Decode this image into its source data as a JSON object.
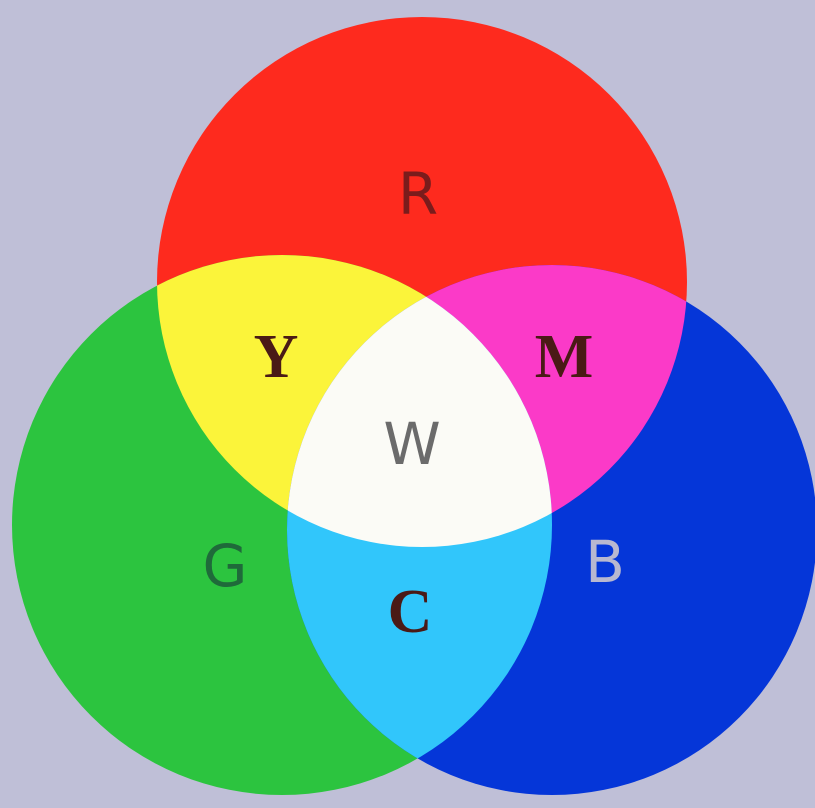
{
  "nodes": [
    {
      "label": "R"
    },
    {
      "label": "Y"
    },
    {
      "label": "M"
    },
    {
      "label": "W"
    },
    {
      "label": "G"
    },
    {
      "label": "B"
    },
    {
      "label": "C"
    }
  ]
}
